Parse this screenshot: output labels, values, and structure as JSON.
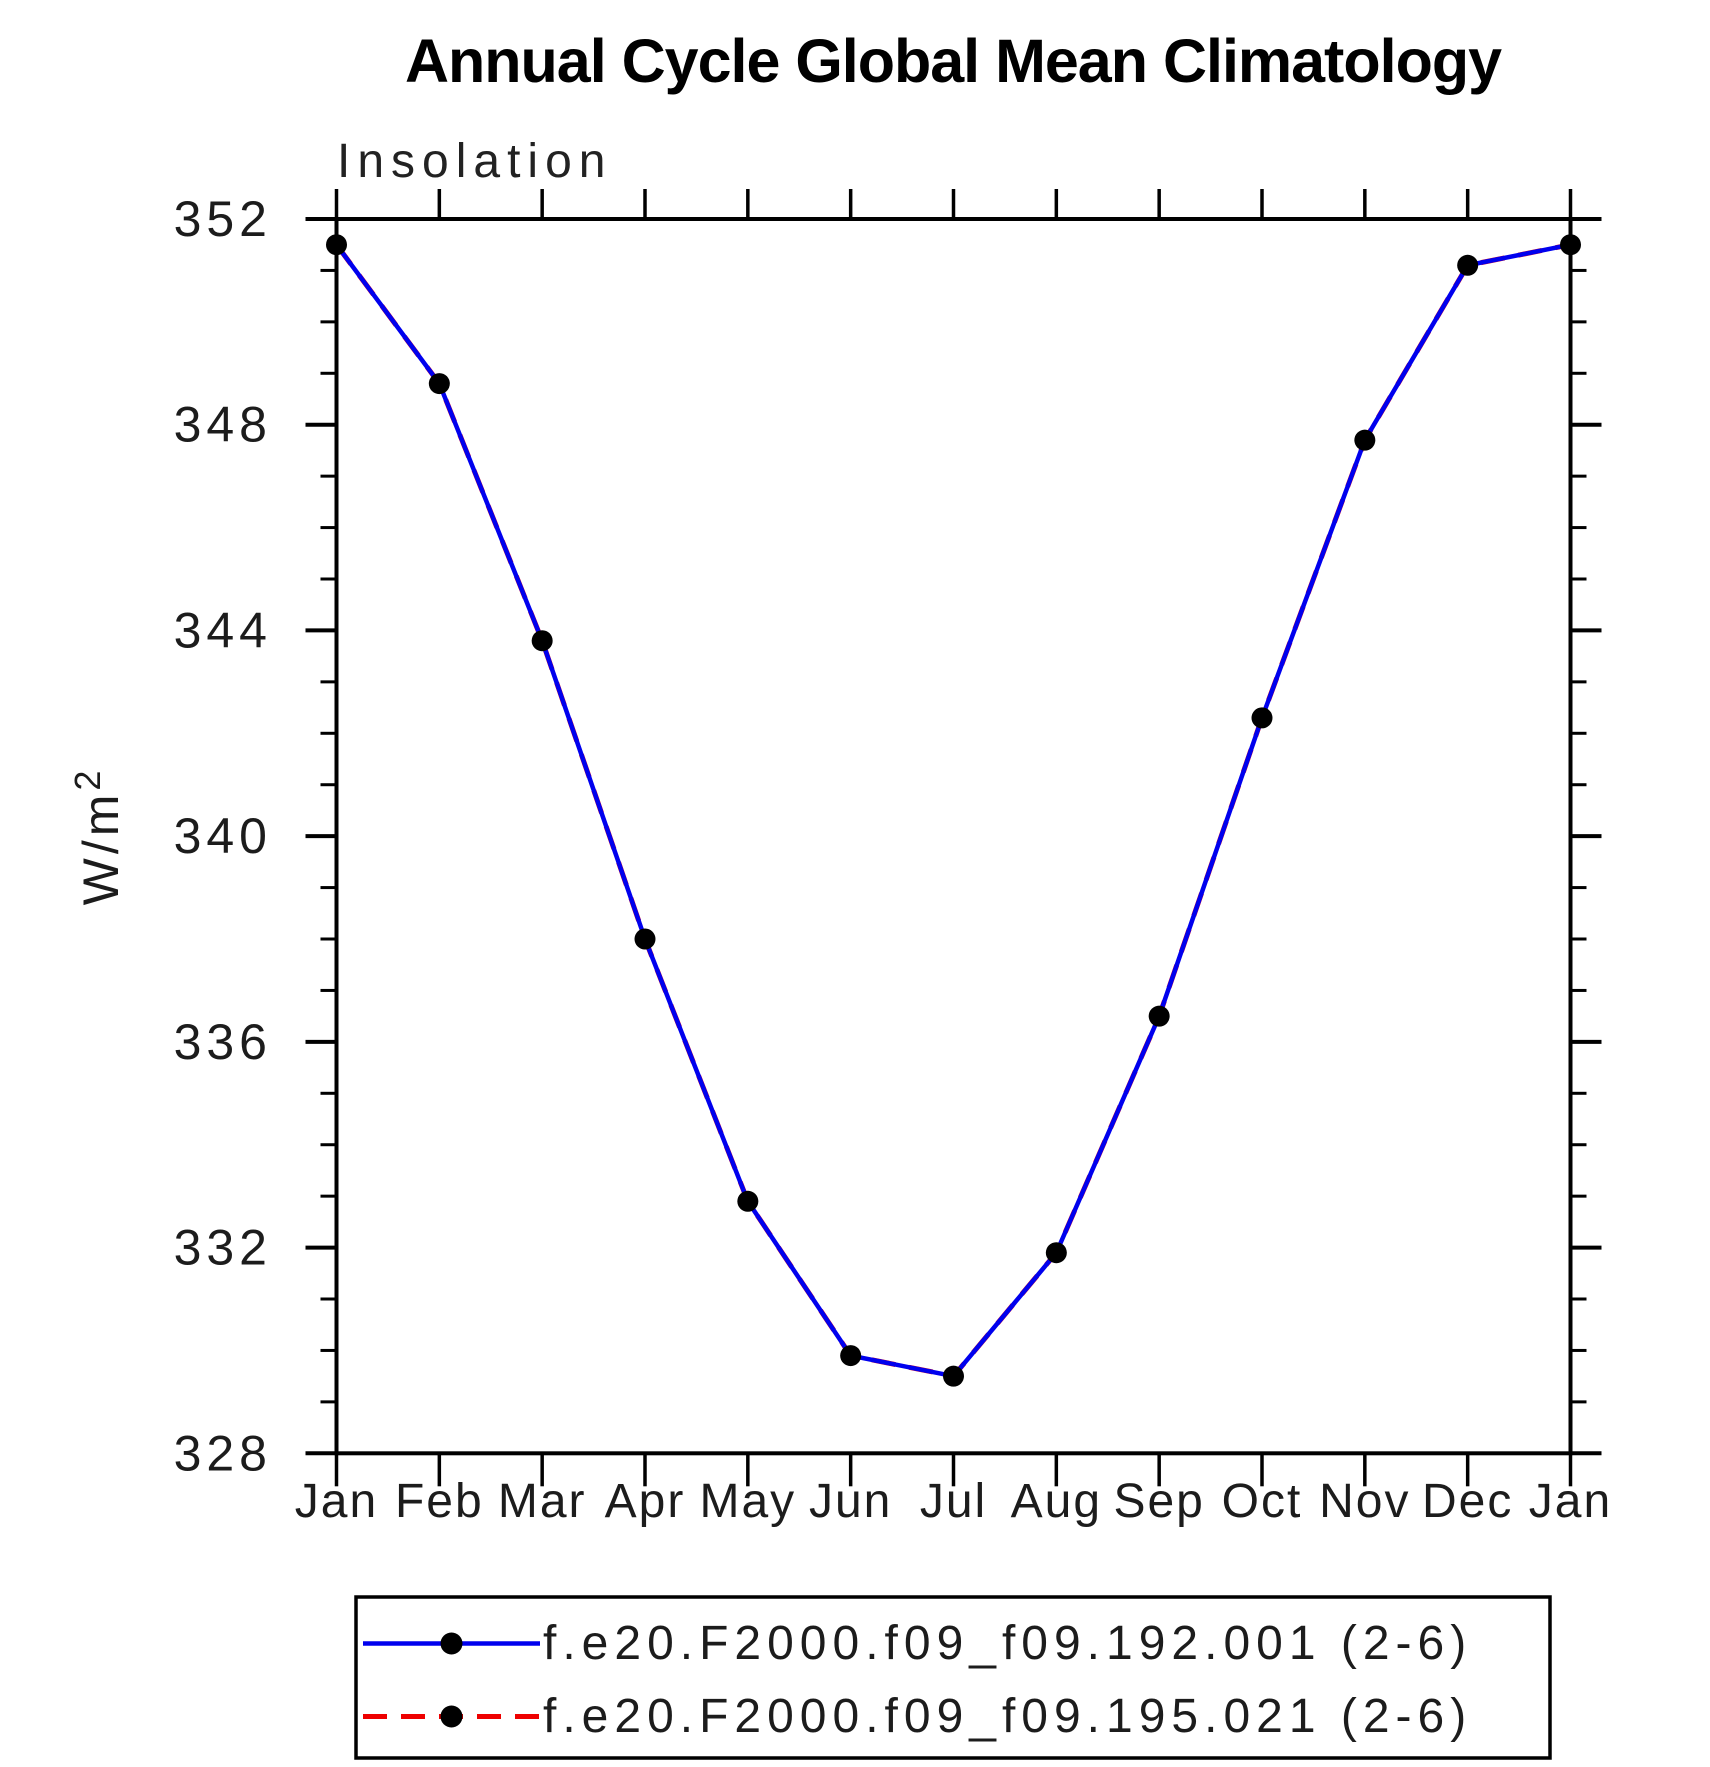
{
  "title": "Annual Cycle Global Mean Climatology",
  "subtitle": "Insolation",
  "colors": {
    "series1": "#0000ee",
    "series2": "#ee0000",
    "marker": "#000000",
    "axis": "#000000",
    "text": "#1c1c1c"
  },
  "chart_data": {
    "type": "line",
    "title": "Annual Cycle Global Mean Climatology",
    "subtitle": "Insolation",
    "ylabel": "W/m^2",
    "ylabel_base": "W/m",
    "ylabel_sup": "2",
    "xlabel": "",
    "categories": [
      "Jan",
      "Feb",
      "Mar",
      "Apr",
      "May",
      "Jun",
      "Jul",
      "Aug",
      "Sep",
      "Oct",
      "Nov",
      "Dec",
      "Jan"
    ],
    "ylim": [
      328,
      352
    ],
    "ytick_step": 4,
    "yminor_step": 1,
    "grid": false,
    "legend_position": "bottom",
    "series": [
      {
        "name": "f.e20.F2000.f09_f09.192.001 (2-6)",
        "color": "#0000ee",
        "style": "solid",
        "marker": "circle",
        "marker_color": "#000000",
        "values": [
          351.5,
          348.8,
          343.8,
          338.0,
          332.9,
          329.9,
          329.5,
          331.9,
          336.5,
          342.3,
          347.7,
          351.1,
          351.5
        ]
      },
      {
        "name": "f.e20.F2000.f09_f09.195.021 (2-6)",
        "color": "#ee0000",
        "style": "dashed",
        "marker": "circle",
        "marker_color": "#000000",
        "values": [
          351.5,
          348.8,
          343.8,
          338.0,
          332.9,
          329.9,
          329.5,
          331.9,
          336.5,
          342.3,
          347.7,
          351.1,
          351.5
        ]
      }
    ]
  }
}
